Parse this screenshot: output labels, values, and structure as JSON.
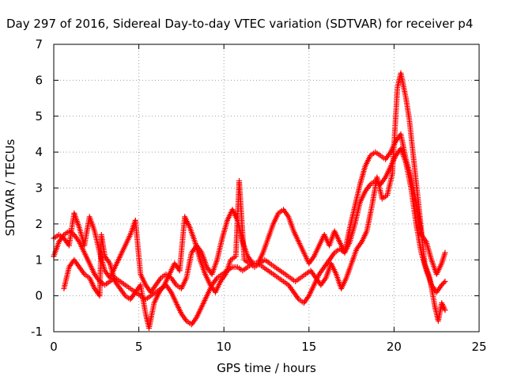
{
  "chart_data": {
    "type": "scatter",
    "title": "Day 297 of 2016, Sidereal Day-to-day VTEC variation (SDTVAR) for receiver p4",
    "xlabel": "GPS time / hours",
    "ylabel": "SDTVAR / TECUs",
    "xlim": [
      0,
      25
    ],
    "ylim": [
      -1,
      7
    ],
    "xticks": [
      "0",
      "5",
      "10",
      "15",
      "20",
      "25"
    ],
    "yticks": [
      "-1",
      "0",
      "1",
      "2",
      "3",
      "4",
      "5",
      "6",
      "7"
    ],
    "grid": true,
    "marker": "plus",
    "color": "#ff0000",
    "series": [
      {
        "points": [
          [
            0.0,
            1.1
          ],
          [
            0.3,
            1.5
          ],
          [
            0.6,
            1.7
          ],
          [
            0.9,
            1.8
          ],
          [
            1.2,
            1.7
          ],
          [
            1.5,
            1.5
          ],
          [
            1.8,
            1.2
          ],
          [
            2.1,
            0.9
          ],
          [
            2.4,
            0.6
          ],
          [
            2.7,
            0.4
          ],
          [
            3.0,
            0.3
          ],
          [
            3.3,
            0.4
          ],
          [
            3.6,
            0.5
          ],
          [
            3.9,
            0.4
          ],
          [
            4.2,
            0.3
          ],
          [
            4.5,
            0.2
          ],
          [
            4.8,
            0.1
          ],
          [
            5.1,
            0.0
          ],
          [
            5.4,
            -0.1
          ],
          [
            5.7,
            0.0
          ],
          [
            6.0,
            0.1
          ],
          [
            6.3,
            0.2
          ],
          [
            6.6,
            0.3
          ],
          [
            6.9,
            0.1
          ],
          [
            7.2,
            -0.2
          ],
          [
            7.5,
            -0.5
          ],
          [
            7.8,
            -0.7
          ],
          [
            8.1,
            -0.8
          ],
          [
            8.4,
            -0.6
          ],
          [
            8.7,
            -0.3
          ],
          [
            9.0,
            0.0
          ],
          [
            9.3,
            0.3
          ],
          [
            9.6,
            0.5
          ],
          [
            9.9,
            0.6
          ],
          [
            10.2,
            0.7
          ],
          [
            10.5,
            0.8
          ],
          [
            10.8,
            0.8
          ],
          [
            11.1,
            0.7
          ],
          [
            11.4,
            0.8
          ],
          [
            11.7,
            0.9
          ],
          [
            12.0,
            0.9
          ],
          [
            12.3,
            0.8
          ],
          [
            12.6,
            0.7
          ],
          [
            12.9,
            0.6
          ],
          [
            13.2,
            0.5
          ],
          [
            13.5,
            0.4
          ],
          [
            13.8,
            0.3
          ],
          [
            14.1,
            0.1
          ],
          [
            14.4,
            -0.1
          ],
          [
            14.7,
            -0.2
          ],
          [
            15.0,
            0.0
          ],
          [
            15.3,
            0.3
          ],
          [
            15.6,
            0.6
          ],
          [
            15.9,
            0.8
          ],
          [
            16.2,
            1.0
          ],
          [
            16.5,
            1.2
          ],
          [
            16.8,
            1.3
          ],
          [
            17.1,
            1.2
          ],
          [
            17.4,
            1.5
          ],
          [
            17.7,
            2.0
          ],
          [
            18.0,
            2.6
          ],
          [
            18.3,
            2.9
          ],
          [
            18.6,
            3.1
          ],
          [
            18.9,
            3.2
          ],
          [
            19.2,
            3.1
          ],
          [
            19.5,
            3.3
          ],
          [
            19.8,
            3.6
          ],
          [
            20.1,
            3.9
          ],
          [
            20.4,
            4.1
          ],
          [
            20.7,
            3.7
          ],
          [
            21.0,
            3.0
          ],
          [
            21.3,
            2.0
          ],
          [
            21.6,
            1.2
          ],
          [
            21.9,
            0.7
          ],
          [
            22.2,
            0.3
          ],
          [
            22.5,
            0.1
          ],
          [
            22.8,
            0.3
          ],
          [
            23.0,
            0.4
          ]
        ]
      },
      {
        "points": [
          [
            0.0,
            1.6
          ],
          [
            0.3,
            1.7
          ],
          [
            0.6,
            1.6
          ],
          [
            0.9,
            1.4
          ],
          [
            1.2,
            2.3
          ],
          [
            1.5,
            1.9
          ],
          [
            1.8,
            1.4
          ],
          [
            2.1,
            2.2
          ],
          [
            2.4,
            1.8
          ],
          [
            2.7,
            1.2
          ],
          [
            3.0,
            0.7
          ],
          [
            3.3,
            0.5
          ],
          [
            3.6,
            0.8
          ],
          [
            3.9,
            1.1
          ],
          [
            4.2,
            1.4
          ],
          [
            4.5,
            1.7
          ],
          [
            4.8,
            2.1
          ],
          [
            5.1,
            0.6
          ],
          [
            5.4,
            0.3
          ],
          [
            5.7,
            0.1
          ],
          [
            6.0,
            0.3
          ],
          [
            6.3,
            0.5
          ],
          [
            6.6,
            0.6
          ],
          [
            6.9,
            0.5
          ],
          [
            7.2,
            0.3
          ],
          [
            7.5,
            0.2
          ],
          [
            7.8,
            0.5
          ],
          [
            8.1,
            1.2
          ],
          [
            8.4,
            1.4
          ],
          [
            8.7,
            1.2
          ],
          [
            9.0,
            0.8
          ],
          [
            9.3,
            0.6
          ],
          [
            9.6,
            1.0
          ],
          [
            9.9,
            1.6
          ],
          [
            10.2,
            2.1
          ],
          [
            10.5,
            2.4
          ],
          [
            10.8,
            2.1
          ],
          [
            11.1,
            1.5
          ],
          [
            11.4,
            1.1
          ],
          [
            11.7,
            0.9
          ],
          [
            12.0,
            0.9
          ],
          [
            12.3,
            1.2
          ],
          [
            12.6,
            1.6
          ],
          [
            12.9,
            2.0
          ],
          [
            13.2,
            2.3
          ],
          [
            13.5,
            2.4
          ],
          [
            13.8,
            2.2
          ],
          [
            14.1,
            1.8
          ],
          [
            14.4,
            1.5
          ],
          [
            15.0,
            0.9
          ],
          [
            15.3,
            1.1
          ],
          [
            15.6,
            1.4
          ],
          [
            15.9,
            1.7
          ],
          [
            16.2,
            1.4
          ],
          [
            16.5,
            1.8
          ],
          [
            16.8,
            1.5
          ],
          [
            17.1,
            1.2
          ],
          [
            17.4,
            1.9
          ],
          [
            17.7,
            2.5
          ],
          [
            18.0,
            3.1
          ],
          [
            18.3,
            3.6
          ],
          [
            18.6,
            3.9
          ],
          [
            18.9,
            4.0
          ],
          [
            19.2,
            3.9
          ],
          [
            19.5,
            3.8
          ],
          [
            19.8,
            4.0
          ],
          [
            20.1,
            4.3
          ],
          [
            20.4,
            4.5
          ],
          [
            20.7,
            3.8
          ],
          [
            21.0,
            3.3
          ],
          [
            21.3,
            2.6
          ],
          [
            21.6,
            1.7
          ],
          [
            21.9,
            1.5
          ],
          [
            22.2,
            1.0
          ],
          [
            22.5,
            0.6
          ],
          [
            22.8,
            0.9
          ],
          [
            23.0,
            1.2
          ]
        ]
      },
      {
        "points": [
          [
            0.6,
            0.2
          ],
          [
            0.9,
            0.8
          ],
          [
            1.2,
            1.0
          ],
          [
            1.5,
            0.8
          ],
          [
            1.8,
            0.6
          ],
          [
            2.1,
            0.5
          ],
          [
            2.4,
            0.2
          ],
          [
            2.7,
            0.0
          ],
          [
            2.8,
            1.7
          ],
          [
            3.0,
            1.1
          ],
          [
            3.3,
            0.9
          ],
          [
            3.6,
            0.4
          ],
          [
            3.9,
            0.2
          ],
          [
            4.2,
            0.0
          ],
          [
            4.5,
            -0.1
          ],
          [
            4.8,
            0.1
          ],
          [
            5.1,
            0.3
          ],
          [
            5.4,
            -0.5
          ],
          [
            5.6,
            -0.9
          ],
          [
            5.9,
            -0.2
          ],
          [
            6.2,
            0.1
          ],
          [
            6.5,
            0.3
          ],
          [
            6.8,
            0.6
          ],
          [
            7.1,
            0.9
          ],
          [
            7.4,
            0.7
          ],
          [
            7.7,
            2.2
          ],
          [
            8.0,
            1.9
          ],
          [
            8.3,
            1.5
          ],
          [
            8.6,
            1.0
          ],
          [
            8.9,
            0.6
          ],
          [
            9.2,
            0.3
          ],
          [
            9.5,
            0.1
          ],
          [
            9.8,
            0.4
          ],
          [
            10.1,
            0.6
          ],
          [
            10.4,
            1.0
          ],
          [
            10.7,
            1.1
          ],
          [
            10.9,
            3.2
          ],
          [
            11.2,
            1.0
          ],
          [
            11.5,
            0.9
          ],
          [
            11.8,
            0.8
          ],
          [
            12.1,
            0.9
          ],
          [
            12.4,
            1.0
          ],
          [
            12.7,
            0.9
          ],
          [
            13.0,
            0.8
          ],
          [
            13.3,
            0.7
          ],
          [
            13.6,
            0.6
          ],
          [
            13.9,
            0.5
          ],
          [
            14.2,
            0.4
          ],
          [
            14.5,
            0.5
          ],
          [
            14.8,
            0.6
          ],
          [
            15.1,
            0.7
          ],
          [
            15.4,
            0.5
          ],
          [
            15.7,
            0.3
          ],
          [
            16.0,
            0.5
          ],
          [
            16.3,
            0.9
          ],
          [
            16.6,
            0.6
          ],
          [
            16.9,
            0.2
          ],
          [
            17.2,
            0.5
          ],
          [
            17.5,
            0.9
          ],
          [
            17.8,
            1.3
          ],
          [
            18.1,
            1.5
          ],
          [
            18.4,
            1.8
          ],
          [
            18.7,
            2.5
          ],
          [
            19.0,
            3.3
          ],
          [
            19.3,
            2.7
          ],
          [
            19.6,
            2.8
          ],
          [
            19.9,
            3.4
          ],
          [
            20.2,
            5.8
          ],
          [
            20.4,
            6.2
          ],
          [
            20.7,
            5.5
          ],
          [
            20.9,
            4.9
          ],
          [
            21.2,
            3.6
          ],
          [
            21.5,
            2.3
          ],
          [
            21.8,
            0.9
          ],
          [
            22.1,
            0.5
          ],
          [
            22.4,
            -0.3
          ],
          [
            22.6,
            -0.7
          ],
          [
            22.8,
            -0.2
          ],
          [
            23.0,
            -0.4
          ]
        ]
      }
    ]
  }
}
